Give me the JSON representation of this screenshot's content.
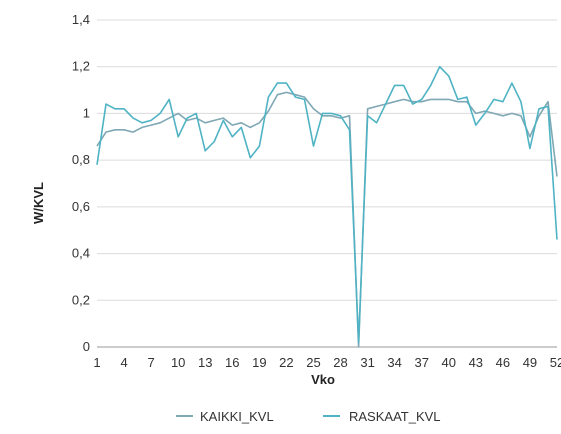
{
  "chart_data": {
    "type": "line",
    "xlabel": "Vko",
    "ylabel": "W/KVL",
    "ylim": [
      0,
      1.4
    ],
    "y_ticks": [
      "0",
      "0,2",
      "0,4",
      "0,6",
      "0,8",
      "1",
      "1,2",
      "1,4"
    ],
    "x": [
      1,
      2,
      3,
      4,
      5,
      6,
      7,
      8,
      9,
      10,
      11,
      12,
      13,
      14,
      15,
      16,
      17,
      18,
      19,
      20,
      21,
      22,
      23,
      24,
      25,
      26,
      27,
      28,
      29,
      30,
      31,
      32,
      33,
      34,
      35,
      36,
      37,
      38,
      39,
      40,
      41,
      42,
      43,
      44,
      45,
      46,
      47,
      48,
      49,
      50,
      51,
      52
    ],
    "x_ticks": [
      1,
      4,
      7,
      10,
      13,
      16,
      19,
      22,
      25,
      28,
      31,
      34,
      37,
      40,
      43,
      46,
      49,
      52
    ],
    "grid": true,
    "legend_position": "bottom",
    "series": [
      {
        "name": "KAIKKI_KVL",
        "color": "#7fa7b4",
        "values": [
          0.86,
          0.92,
          0.93,
          0.93,
          0.92,
          0.94,
          0.95,
          0.96,
          0.98,
          1.0,
          0.97,
          0.98,
          0.96,
          0.97,
          0.98,
          0.95,
          0.96,
          0.94,
          0.96,
          1.01,
          1.08,
          1.09,
          1.08,
          1.07,
          1.02,
          0.99,
          0.99,
          0.98,
          0.99,
          0.0,
          1.02,
          1.03,
          1.04,
          1.05,
          1.06,
          1.05,
          1.05,
          1.06,
          1.06,
          1.06,
          1.05,
          1.05,
          1.0,
          1.01,
          1.0,
          0.99,
          1.0,
          0.99,
          0.9,
          0.99,
          1.05,
          0.73
        ]
      },
      {
        "name": "RASKAAT_KVL",
        "color": "#4fb3c4",
        "values": [
          0.78,
          1.04,
          1.02,
          1.02,
          0.98,
          0.96,
          0.97,
          1.0,
          1.06,
          0.9,
          0.98,
          1.0,
          0.84,
          0.88,
          0.97,
          0.9,
          0.94,
          0.81,
          0.86,
          1.07,
          1.13,
          1.13,
          1.07,
          1.06,
          0.86,
          1.0,
          1.0,
          0.99,
          0.93,
          0.02,
          0.99,
          0.96,
          1.04,
          1.12,
          1.12,
          1.04,
          1.06,
          1.12,
          1.2,
          1.16,
          1.06,
          1.07,
          0.95,
          1.0,
          1.06,
          1.05,
          1.13,
          1.05,
          0.85,
          1.02,
          1.03,
          0.46
        ]
      }
    ]
  }
}
